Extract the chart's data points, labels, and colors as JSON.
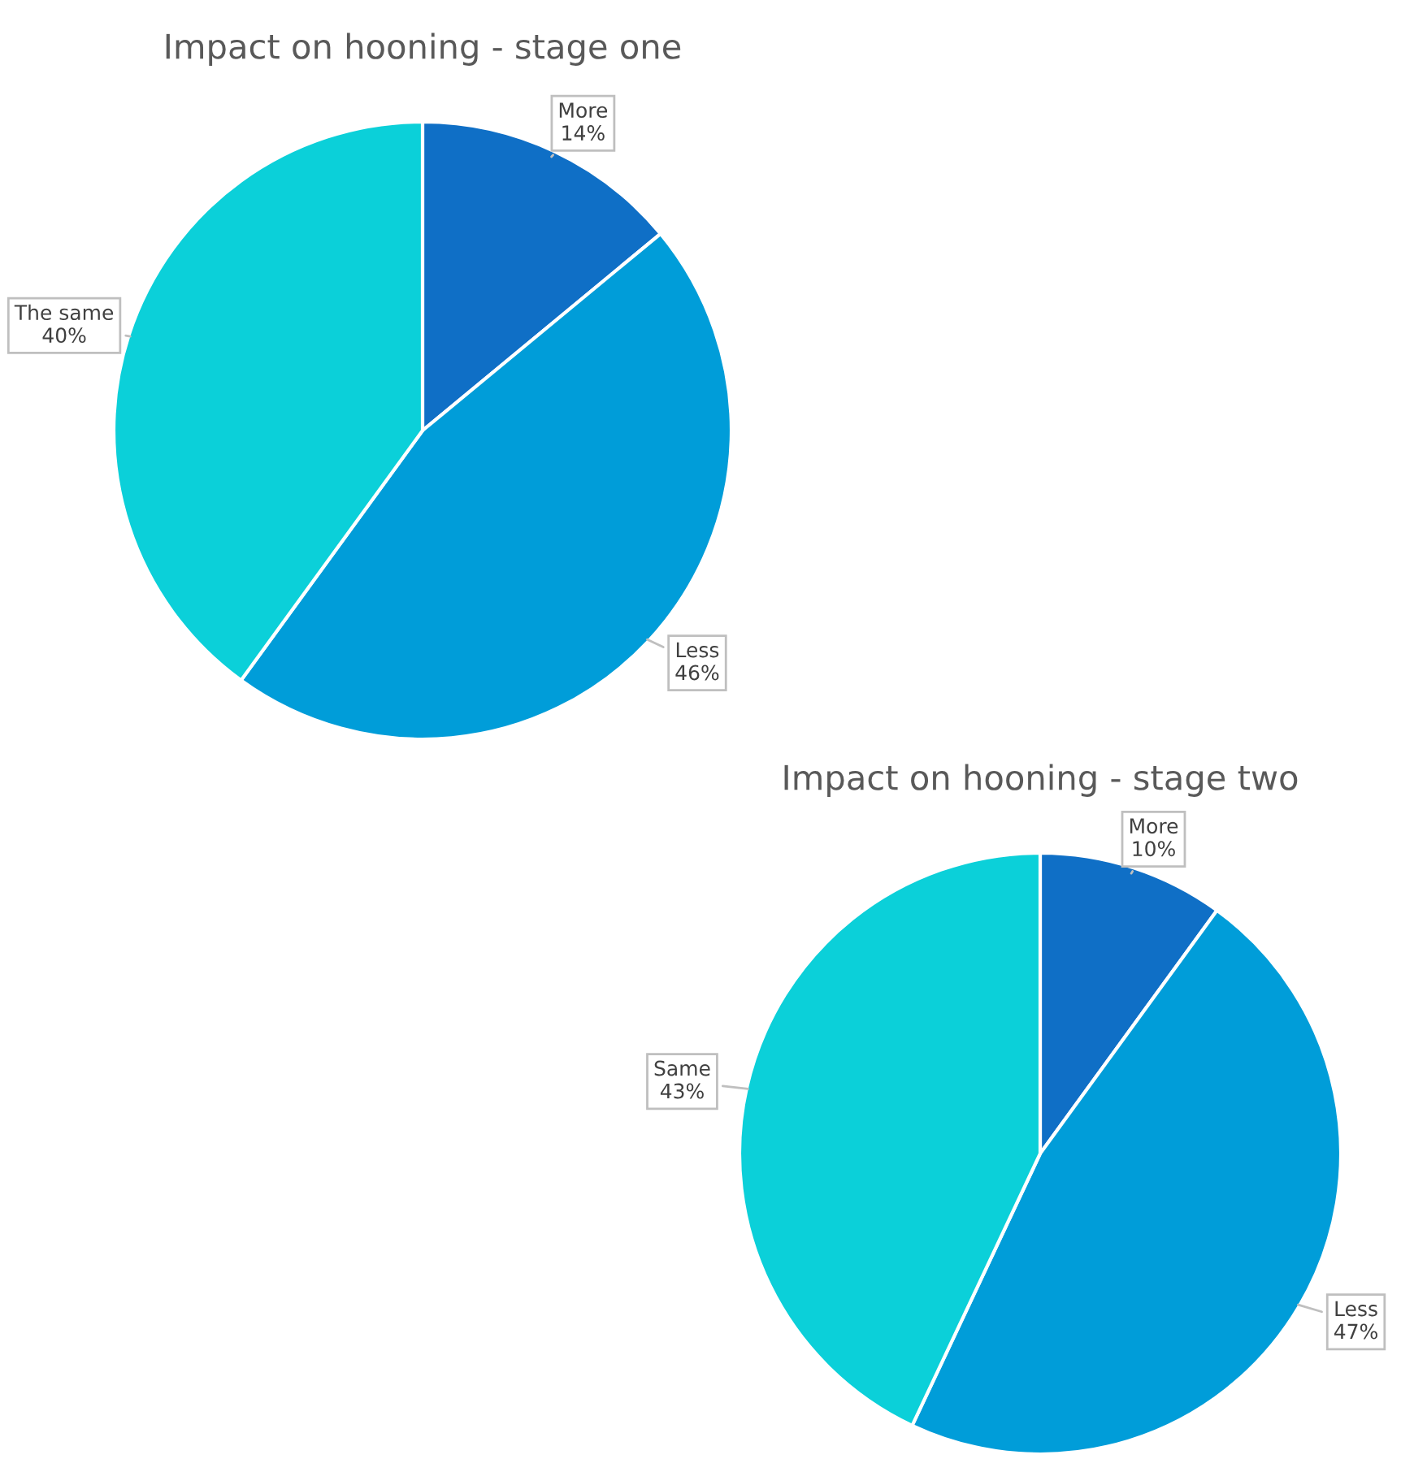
{
  "chart_data": [
    {
      "type": "pie",
      "title": "Impact on hooning - stage one",
      "categories": [
        "More",
        "Less",
        "The same"
      ],
      "values": [
        14,
        46,
        40
      ],
      "value_labels": [
        "14%",
        "46%",
        "40%"
      ],
      "colors": [
        "#0f6fc6",
        "#009dd9",
        "#0bd0d9"
      ],
      "legend": false
    },
    {
      "type": "pie",
      "title": "Impact on hooning - stage two",
      "categories": [
        "More",
        "Less",
        "Same"
      ],
      "values": [
        10,
        47,
        43
      ],
      "value_labels": [
        "10%",
        "47%",
        "43%"
      ],
      "colors": [
        "#0f6fc6",
        "#009dd9",
        "#0bd0d9"
      ],
      "legend": false
    }
  ]
}
